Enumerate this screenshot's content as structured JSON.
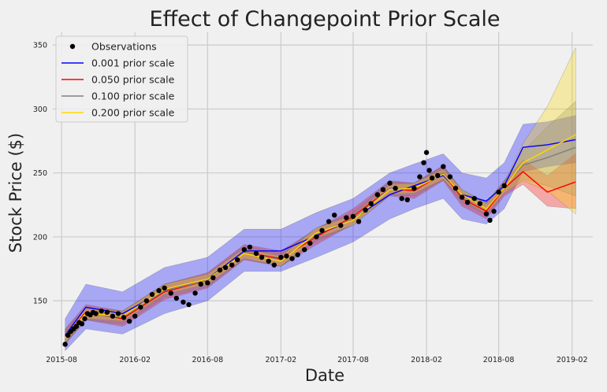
{
  "chart_data": {
    "type": "line",
    "title": "Effect of Changepoint Prior Scale",
    "xlabel": "Date",
    "ylabel": "Stock Price ($)",
    "x_ticks": [
      "2015-08",
      "2016-02",
      "2016-08",
      "2017-02",
      "2017-08",
      "2018-02",
      "2018-08",
      "2019-02"
    ],
    "y_ticks": [
      150,
      200,
      250,
      300,
      350
    ],
    "xlim": [
      "2015-07-10",
      "2019-03-25"
    ],
    "ylim": [
      107,
      360
    ],
    "grid": true,
    "legend_position": "top-left",
    "legend": [
      {
        "label": "Observations",
        "color": "#000000",
        "marker": "dot"
      },
      {
        "label": "0.001 prior scale",
        "color": "#0000ff",
        "marker": "line"
      },
      {
        "label": "0.050 prior scale",
        "color": "#ff0000",
        "marker": "line"
      },
      {
        "label": "0.100 prior scale",
        "color": "#808080",
        "marker": "line"
      },
      {
        "label": "0.200 prior scale",
        "color": "#ffd700",
        "marker": "line"
      }
    ],
    "observations": {
      "name": "Observations",
      "points": [
        [
          "2015-08-10",
          116
        ],
        [
          "2015-08-17",
          123
        ],
        [
          "2015-08-24",
          126
        ],
        [
          "2015-08-31",
          128
        ],
        [
          "2015-09-07",
          130
        ],
        [
          "2015-09-14",
          133
        ],
        [
          "2015-09-21",
          132
        ],
        [
          "2015-09-28",
          136
        ],
        [
          "2015-10-05",
          140
        ],
        [
          "2015-10-12",
          139
        ],
        [
          "2015-10-19",
          141
        ],
        [
          "2015-10-26",
          140
        ],
        [
          "2015-11-09",
          142
        ],
        [
          "2015-11-23",
          141
        ],
        [
          "2015-12-07",
          138
        ],
        [
          "2015-12-21",
          140
        ],
        [
          "2016-01-04",
          137
        ],
        [
          "2016-01-18",
          134
        ],
        [
          "2016-02-01",
          138
        ],
        [
          "2016-02-15",
          145
        ],
        [
          "2016-03-01",
          150
        ],
        [
          "2016-03-15",
          155
        ],
        [
          "2016-04-01",
          158
        ],
        [
          "2016-04-15",
          160
        ],
        [
          "2016-05-01",
          156
        ],
        [
          "2016-05-15",
          152
        ],
        [
          "2016-06-01",
          149
        ],
        [
          "2016-06-15",
          147
        ],
        [
          "2016-07-01",
          156
        ],
        [
          "2016-07-15",
          163
        ],
        [
          "2016-08-01",
          164
        ],
        [
          "2016-08-15",
          168
        ],
        [
          "2016-09-01",
          174
        ],
        [
          "2016-09-15",
          176
        ],
        [
          "2016-10-01",
          178
        ],
        [
          "2016-10-15",
          182
        ],
        [
          "2016-11-01",
          190
        ],
        [
          "2016-11-15",
          192
        ],
        [
          "2016-12-01",
          187
        ],
        [
          "2016-12-15",
          184
        ],
        [
          "2017-01-01",
          181
        ],
        [
          "2017-01-15",
          178
        ],
        [
          "2017-02-01",
          184
        ],
        [
          "2017-02-15",
          185
        ],
        [
          "2017-03-01",
          183
        ],
        [
          "2017-03-15",
          186
        ],
        [
          "2017-04-01",
          190
        ],
        [
          "2017-04-15",
          195
        ],
        [
          "2017-05-01",
          200
        ],
        [
          "2017-05-15",
          205
        ],
        [
          "2017-06-01",
          212
        ],
        [
          "2017-06-15",
          217
        ],
        [
          "2017-07-01",
          209
        ],
        [
          "2017-07-15",
          215
        ],
        [
          "2017-08-01",
          216
        ],
        [
          "2017-08-15",
          212
        ],
        [
          "2017-09-01",
          221
        ],
        [
          "2017-09-15",
          226
        ],
        [
          "2017-10-01",
          233
        ],
        [
          "2017-10-15",
          237
        ],
        [
          "2017-11-01",
          242
        ],
        [
          "2017-11-15",
          238
        ],
        [
          "2017-12-01",
          230
        ],
        [
          "2017-12-15",
          229
        ],
        [
          "2018-01-01",
          238
        ],
        [
          "2018-01-15",
          247
        ],
        [
          "2018-01-25",
          258
        ],
        [
          "2018-02-01",
          266
        ],
        [
          "2018-02-08",
          252
        ],
        [
          "2018-02-15",
          246
        ],
        [
          "2018-03-01",
          248
        ],
        [
          "2018-03-15",
          255
        ],
        [
          "2018-04-01",
          247
        ],
        [
          "2018-04-15",
          238
        ],
        [
          "2018-05-01",
          231
        ],
        [
          "2018-05-15",
          227
        ],
        [
          "2018-06-01",
          230
        ],
        [
          "2018-06-15",
          226
        ],
        [
          "2018-07-01",
          218
        ],
        [
          "2018-07-10",
          213
        ],
        [
          "2018-07-20",
          220
        ],
        [
          "2018-08-01",
          235
        ],
        [
          "2018-08-15",
          240
        ]
      ]
    },
    "series": [
      {
        "name": "0.001 prior scale",
        "color": "#0000ff",
        "x": [
          "2015-08-10",
          "2015-10-01",
          "2016-01-01",
          "2016-04-15",
          "2016-08-01",
          "2016-11-01",
          "2017-02-01",
          "2017-05-01",
          "2017-08-01",
          "2017-11-01",
          "2018-01-01",
          "2018-03-15",
          "2018-05-01",
          "2018-07-01",
          "2018-08-15",
          "2018-10-01",
          "2018-12-01",
          "2019-02-10"
        ],
        "y": [
          123,
          145,
          140,
          158,
          167,
          189,
          189,
          201,
          214,
          233,
          240,
          248,
          233,
          228,
          240,
          270,
          272,
          276
        ],
        "lower": [
          111,
          128,
          124,
          140,
          150,
          173,
          173,
          184,
          196,
          214,
          222,
          230,
          214,
          210,
          222,
          251,
          255,
          258
        ],
        "upper": [
          136,
          163,
          157,
          176,
          184,
          206,
          206,
          219,
          230,
          250,
          257,
          265,
          250,
          246,
          258,
          288,
          290,
          295
        ]
      },
      {
        "name": "0.050 prior scale",
        "color": "#ff0000",
        "x": [
          "2015-08-10",
          "2015-10-01",
          "2016-01-01",
          "2016-04-15",
          "2016-08-01",
          "2016-11-01",
          "2017-02-01",
          "2017-05-01",
          "2017-08-01",
          "2017-11-01",
          "2018-01-01",
          "2018-03-15",
          "2018-05-01",
          "2018-07-01",
          "2018-08-15",
          "2018-10-01",
          "2018-12-01",
          "2019-02-10"
        ],
        "y": [
          122,
          141,
          136,
          157,
          166,
          188,
          183,
          200,
          216,
          238,
          236,
          250,
          230,
          220,
          238,
          251,
          235,
          243
        ],
        "lower": [
          116,
          135,
          130,
          151,
          160,
          182,
          177,
          194,
          210,
          232,
          230,
          244,
          224,
          214,
          232,
          241,
          224,
          222
        ],
        "upper": [
          128,
          147,
          142,
          163,
          172,
          194,
          189,
          206,
          222,
          244,
          242,
          256,
          236,
          226,
          244,
          260,
          248,
          265
        ]
      },
      {
        "name": "0.100 prior scale",
        "color": "#808080",
        "x": [
          "2015-08-10",
          "2015-10-01",
          "2016-01-01",
          "2016-04-15",
          "2016-08-01",
          "2016-11-01",
          "2017-02-01",
          "2017-05-01",
          "2017-08-01",
          "2017-11-01",
          "2018-01-01",
          "2018-03-15",
          "2018-05-01",
          "2018-07-01",
          "2018-08-15",
          "2018-10-01",
          "2018-12-01",
          "2019-02-10"
        ],
        "y": [
          122,
          140,
          137,
          158,
          166,
          188,
          182,
          202,
          214,
          238,
          237,
          250,
          232,
          222,
          239,
          256,
          262,
          270
        ],
        "lower": [
          117,
          135,
          132,
          153,
          161,
          183,
          177,
          197,
          209,
          233,
          232,
          245,
          227,
          217,
          234,
          245,
          240,
          232
        ],
        "upper": [
          127,
          145,
          142,
          163,
          171,
          193,
          187,
          207,
          219,
          243,
          242,
          255,
          237,
          227,
          244,
          267,
          286,
          306
        ]
      },
      {
        "name": "0.200 prior scale",
        "color": "#ffd700",
        "x": [
          "2015-08-10",
          "2015-10-01",
          "2016-01-01",
          "2016-04-15",
          "2016-08-01",
          "2016-11-01",
          "2017-02-01",
          "2017-05-01",
          "2017-08-01",
          "2017-11-01",
          "2018-01-01",
          "2018-03-15",
          "2018-05-01",
          "2018-07-01",
          "2018-08-15",
          "2018-10-01",
          "2018-12-01",
          "2019-02-10"
        ],
        "y": [
          121,
          140,
          138,
          159,
          167,
          187,
          181,
          203,
          213,
          237,
          238,
          249,
          233,
          222,
          238,
          258,
          268,
          280
        ],
        "lower": [
          117,
          136,
          134,
          155,
          163,
          183,
          177,
          199,
          209,
          233,
          234,
          245,
          229,
          218,
          234,
          244,
          236,
          218
        ],
        "upper": [
          125,
          144,
          142,
          163,
          171,
          191,
          185,
          207,
          217,
          241,
          242,
          253,
          237,
          226,
          242,
          273,
          302,
          348
        ]
      }
    ]
  }
}
